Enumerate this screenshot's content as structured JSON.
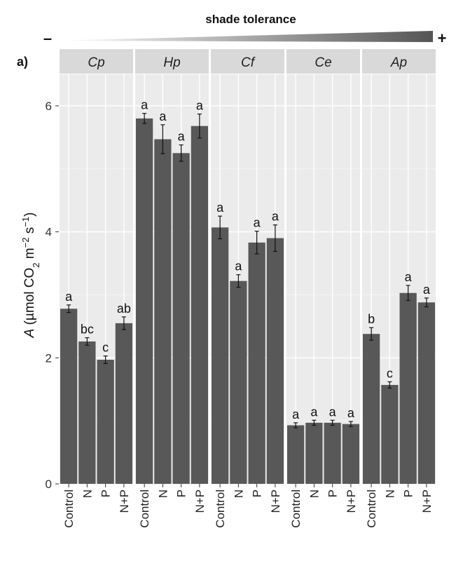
{
  "header": {
    "title": "shade tolerance",
    "minus_symbol": "–",
    "plus_symbol": "+",
    "gradient_start_color": "#ffffff",
    "gradient_end_color": "#555555"
  },
  "panel_label": "a)",
  "colors": {
    "bar": "#585858",
    "panel_bg": "#ebebeb",
    "strip_bg": "#d9d9d9",
    "grid_major": "#ffffff",
    "grid_minor": "#f5f5f5",
    "text": "#111111"
  },
  "chart_data": {
    "type": "bar",
    "facets": [
      "Cp",
      "Hp",
      "Cf",
      "Ce",
      "Ap"
    ],
    "categories": [
      "Control",
      "N",
      "P",
      "N+P"
    ],
    "ylabel": "A (µmol CO2 m−2 s−1)",
    "ylim": [
      0,
      6.5
    ],
    "yticks": [
      0,
      2,
      4,
      6
    ],
    "grid": true,
    "series": [
      {
        "facet": "Cp",
        "values": [
          2.78,
          2.26,
          1.97,
          2.55
        ],
        "errors": [
          0.06,
          0.06,
          0.06,
          0.1
        ],
        "letters": [
          "a",
          "bc",
          "c",
          "ab"
        ]
      },
      {
        "facet": "Hp",
        "values": [
          5.8,
          5.47,
          5.25,
          5.68
        ],
        "errors": [
          0.08,
          0.23,
          0.13,
          0.19
        ],
        "letters": [
          "a",
          "a",
          "a",
          "a"
        ]
      },
      {
        "facet": "Cf",
        "values": [
          4.07,
          3.22,
          3.83,
          3.9
        ],
        "errors": [
          0.18,
          0.1,
          0.18,
          0.21
        ],
        "letters": [
          "a",
          "a",
          "a",
          "a"
        ]
      },
      {
        "facet": "Ce",
        "values": [
          0.93,
          0.97,
          0.97,
          0.95
        ],
        "errors": [
          0.04,
          0.04,
          0.04,
          0.04
        ],
        "letters": [
          "a",
          "a",
          "a",
          "a"
        ]
      },
      {
        "facet": "Ap",
        "values": [
          2.38,
          1.57,
          3.03,
          2.88
        ],
        "errors": [
          0.1,
          0.05,
          0.12,
          0.07
        ],
        "letters": [
          "b",
          "c",
          "a",
          "a"
        ]
      }
    ]
  }
}
